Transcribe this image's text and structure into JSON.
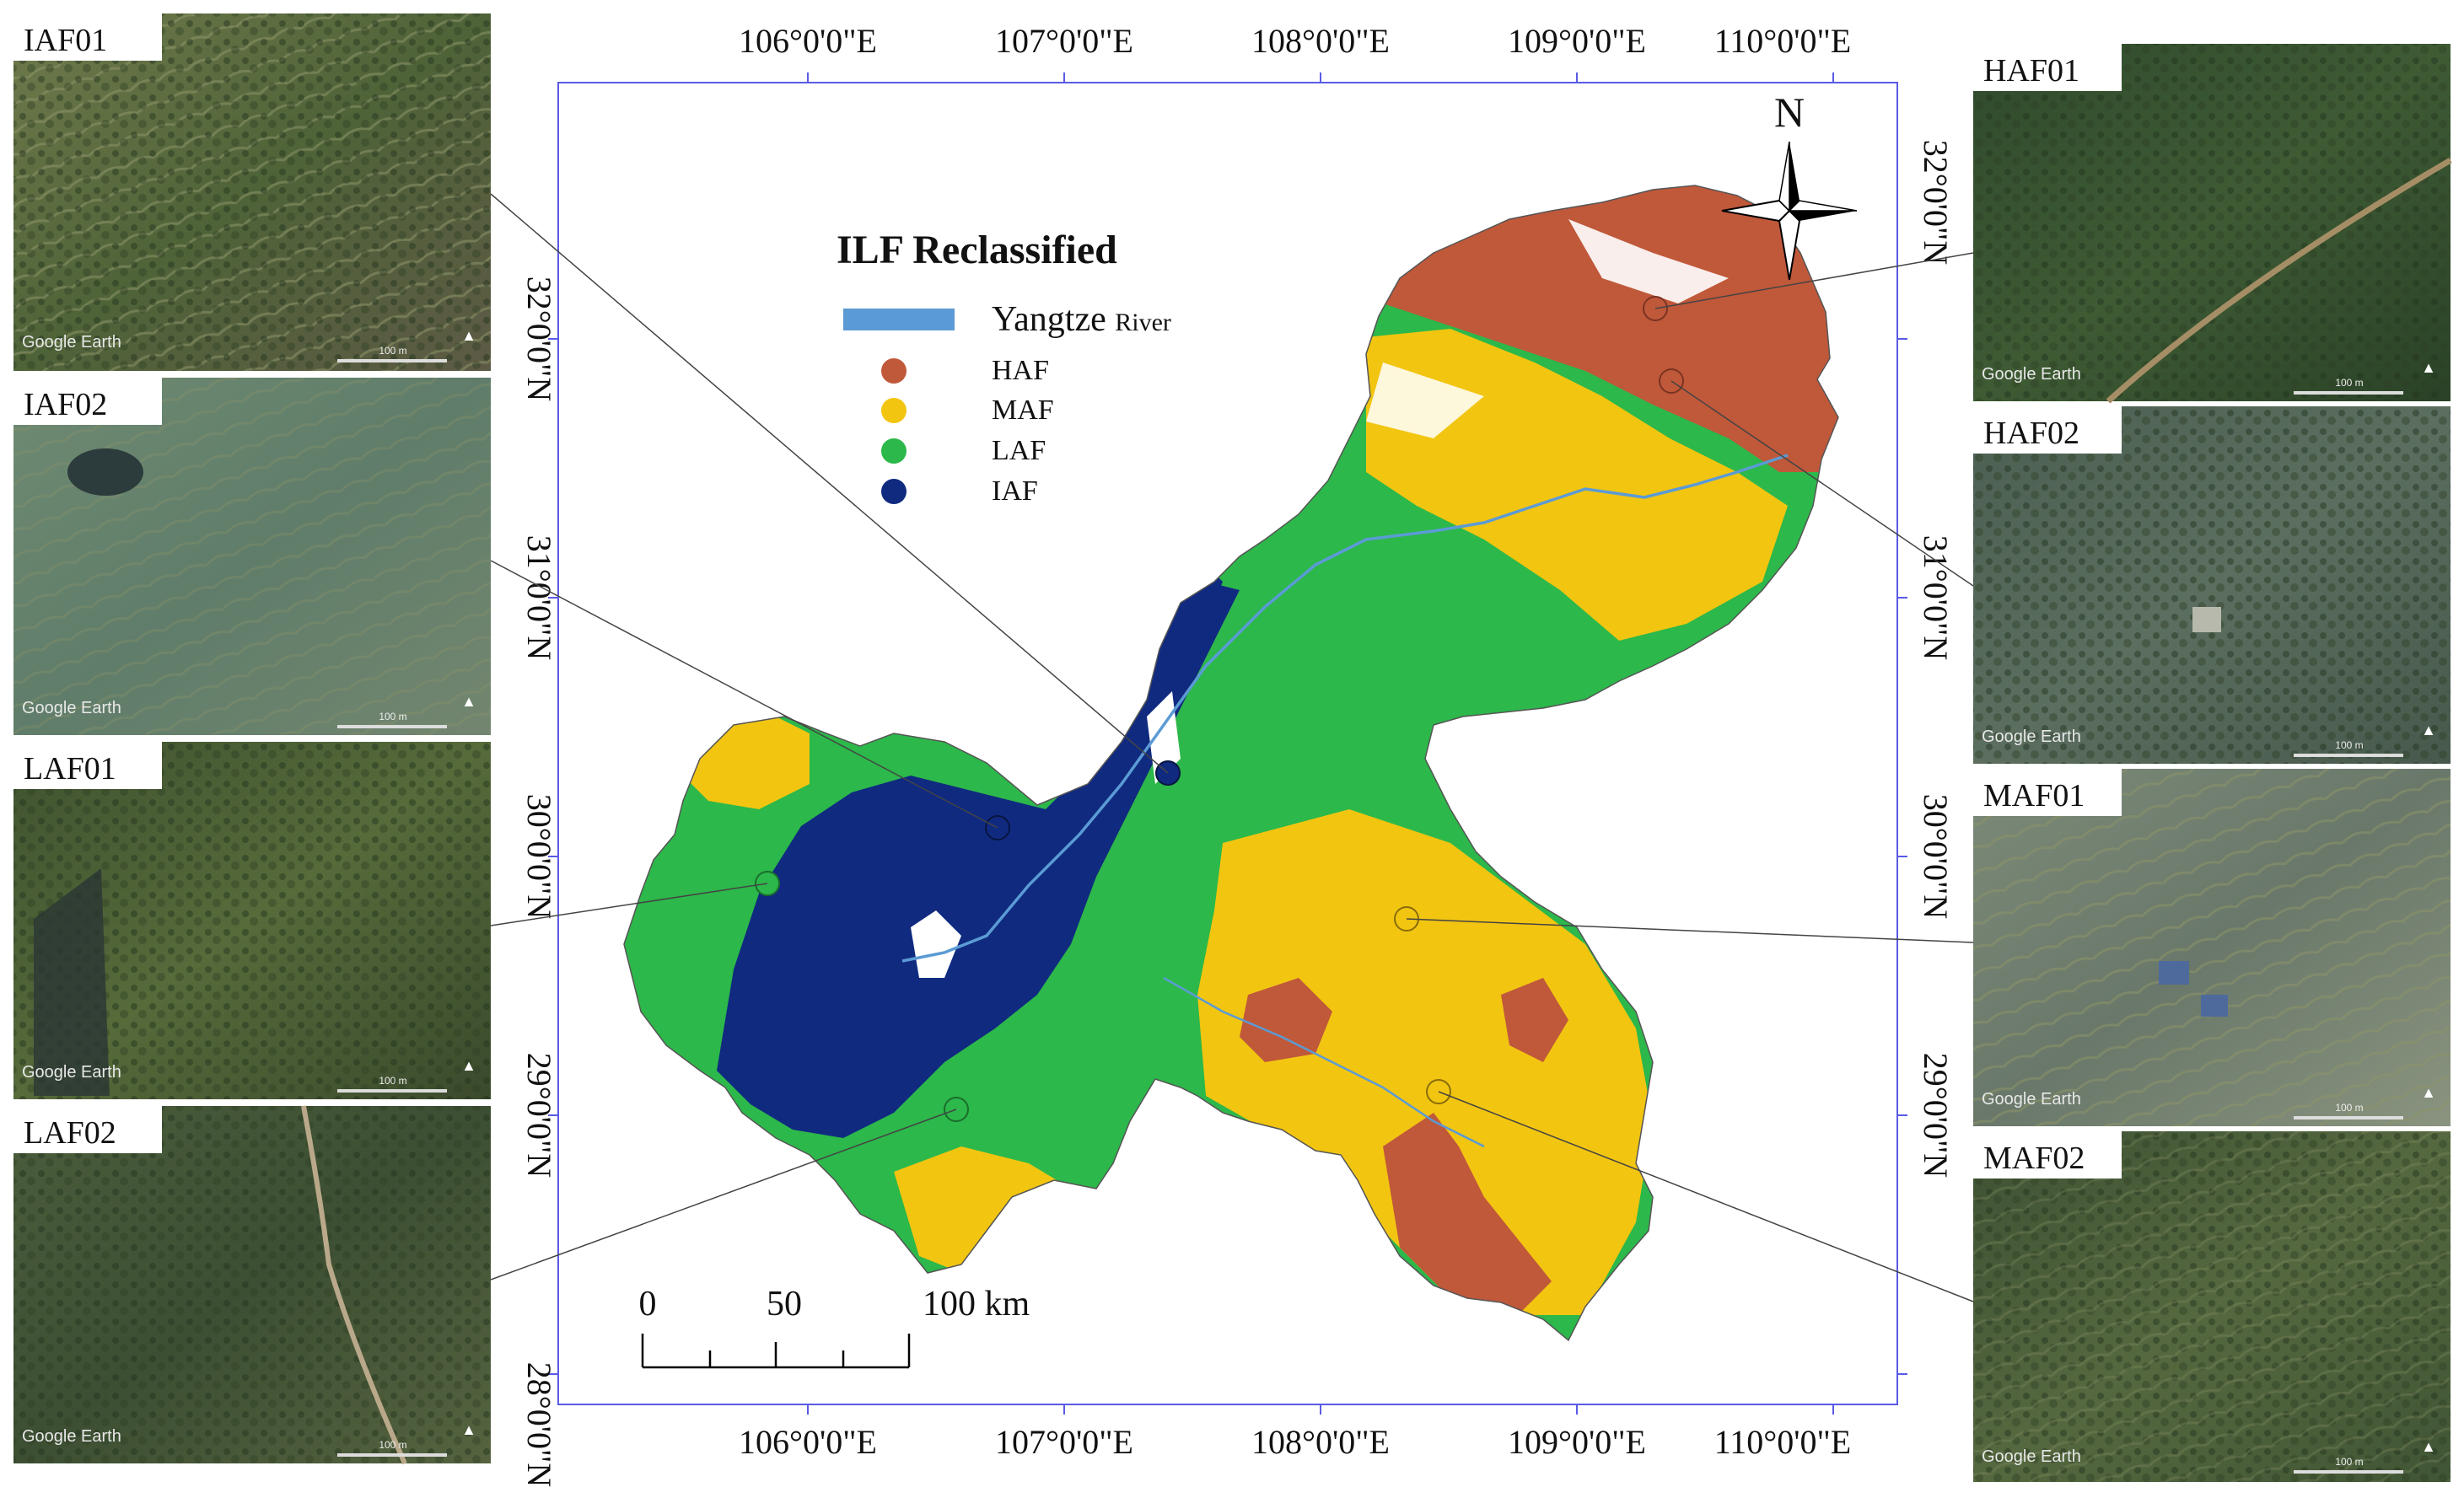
{
  "map": {
    "legend": {
      "title": "ILF Reclassified",
      "river": {
        "label": "Yangtze",
        "label_suffix": "River",
        "color": "#5b9bd5"
      },
      "classes": [
        {
          "code": "HAF",
          "label": "HAF",
          "color": "#c0583a"
        },
        {
          "code": "MAF",
          "label": "MAF",
          "color": "#f2c511"
        },
        {
          "code": "LAF",
          "label": "LAF",
          "color": "#2cb84a"
        },
        {
          "code": "IAF",
          "label": "IAF",
          "color": "#102a80"
        }
      ]
    },
    "north_arrow": {
      "label": "N"
    },
    "scale_bar": {
      "labels": [
        "0",
        "50",
        "100 km"
      ]
    },
    "longitude_ticks": [
      "106°0'0\"E",
      "107°0'0\"E",
      "108°0'0\"E",
      "109°0'0\"E",
      "110°0'0\"E"
    ],
    "latitude_ticks": [
      "28°0'0\"N",
      "29°0'0\"N",
      "30°0'0\"N",
      "31°0'0\"N",
      "32°0'0\"N"
    ],
    "frame_color": "#5a5ae6"
  },
  "photos": [
    {
      "id": "IAF01",
      "label": "IAF01",
      "attribution": "Google Earth",
      "scale_text": "100 m",
      "class": "IAF"
    },
    {
      "id": "IAF02",
      "label": "IAF02",
      "attribution": "Google Earth",
      "scale_text": "100 m",
      "class": "IAF"
    },
    {
      "id": "LAF01",
      "label": "LAF01",
      "attribution": "Google Earth",
      "scale_text": "100 m",
      "class": "LAF"
    },
    {
      "id": "LAF02",
      "label": "LAF02",
      "attribution": "Google Earth",
      "scale_text": "100 m",
      "class": "LAF"
    },
    {
      "id": "HAF01",
      "label": "HAF01",
      "attribution": "Google Earth",
      "scale_text": "100 m",
      "class": "HAF"
    },
    {
      "id": "HAF02",
      "label": "HAF02",
      "attribution": "Google Earth",
      "scale_text": "100 m",
      "class": "HAF"
    },
    {
      "id": "MAF01",
      "label": "MAF01",
      "attribution": "Google Earth",
      "scale_text": "100 m",
      "class": "MAF"
    },
    {
      "id": "MAF02",
      "label": "MAF02",
      "attribution": "Google Earth",
      "scale_text": "100 m",
      "class": "MAF"
    }
  ]
}
